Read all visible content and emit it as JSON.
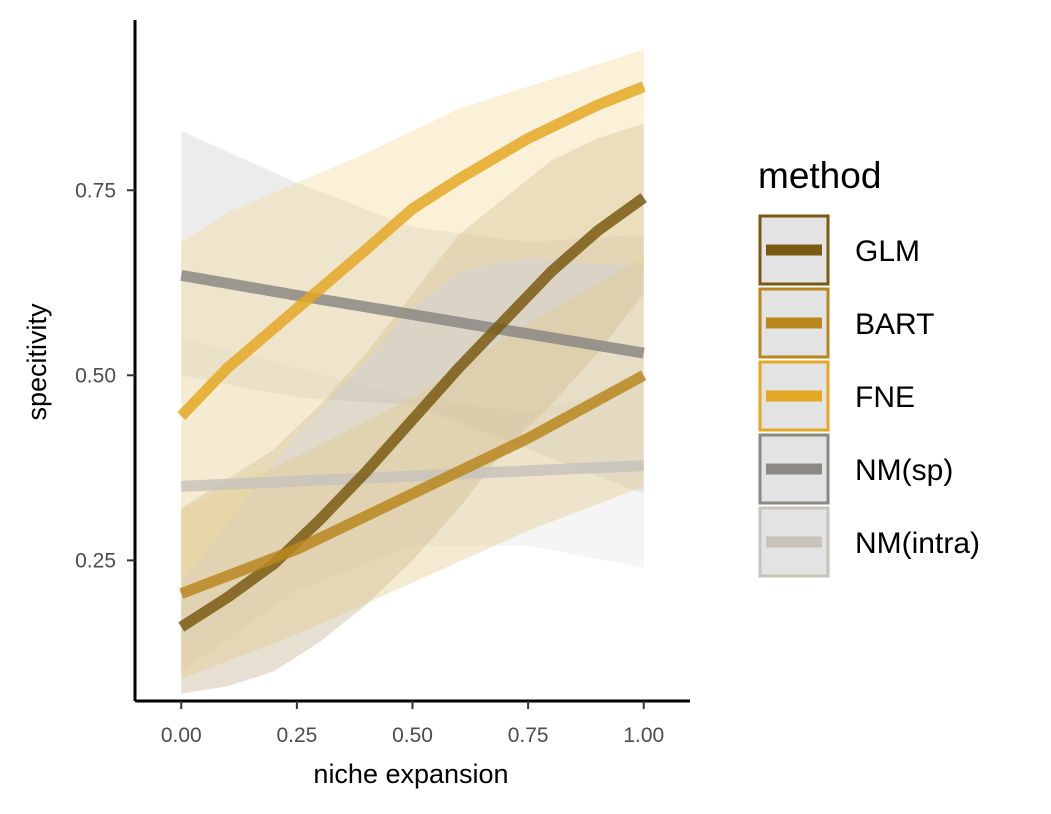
{
  "chart_data": {
    "type": "line",
    "xlabel": "niche expansion",
    "ylabel": "specitivity",
    "xlim": [
      -0.1,
      1.1
    ],
    "ylim": [
      0.06,
      0.98
    ],
    "x_ticks": [
      0,
      0.25,
      0.5,
      0.75,
      1
    ],
    "x_tick_labels": [
      "0.00",
      "0.25",
      "0.50",
      "0.75",
      "1.00"
    ],
    "y_ticks": [
      0.25,
      0.5,
      0.75
    ],
    "y_tick_labels": [
      "0.25",
      "0.50",
      "0.75"
    ],
    "grid": false,
    "legend": {
      "title": "method",
      "position": "right"
    },
    "series": [
      {
        "name": "NM(intra)",
        "color": "#c8c3bb",
        "band_color": "#e6e6e6",
        "x": [
          0,
          0.25,
          0.5,
          0.75,
          1
        ],
        "y": [
          0.35,
          0.357,
          0.364,
          0.371,
          0.378
        ],
        "lower": [
          0.1,
          0.21,
          0.27,
          0.27,
          0.24
        ],
        "upper": [
          0.55,
          0.51,
          0.47,
          0.45,
          0.49
        ]
      },
      {
        "name": "NM(sp)",
        "color": "#8c8883",
        "band_color": "#cccccc",
        "x": [
          0,
          0.25,
          0.5,
          0.75,
          1
        ],
        "y": [
          0.635,
          0.608,
          0.582,
          0.556,
          0.53
        ],
        "lower": [
          0.5,
          0.47,
          0.46,
          0.4,
          0.34
        ],
        "upper": [
          0.83,
          0.76,
          0.7,
          0.68,
          0.69
        ]
      },
      {
        "name": "GLM",
        "color": "#7a5a12",
        "band_color": "#bfae8a",
        "x": [
          0,
          0.1,
          0.2,
          0.3,
          0.4,
          0.5,
          0.6,
          0.7,
          0.8,
          0.9,
          1
        ],
        "y": [
          0.16,
          0.2,
          0.245,
          0.305,
          0.37,
          0.44,
          0.51,
          0.575,
          0.64,
          0.695,
          0.74
        ],
        "lower": [
          0.07,
          0.08,
          0.1,
          0.14,
          0.19,
          0.25,
          0.32,
          0.4,
          0.46,
          0.53,
          0.61
        ],
        "upper": [
          0.32,
          0.36,
          0.4,
          0.46,
          0.53,
          0.61,
          0.69,
          0.74,
          0.79,
          0.82,
          0.84
        ]
      },
      {
        "name": "BART",
        "color": "#b8871e",
        "band_color": "#e3c98a",
        "x": [
          0,
          0.25,
          0.5,
          0.75,
          1
        ],
        "y": [
          0.205,
          0.265,
          0.34,
          0.415,
          0.5
        ],
        "lower": [
          0.09,
          0.15,
          0.22,
          0.29,
          0.35
        ],
        "upper": [
          0.32,
          0.39,
          0.47,
          0.57,
          0.66
        ]
      },
      {
        "name": "FNE",
        "color": "#e4a824",
        "band_color": "#f2d999",
        "x": [
          0,
          0.1,
          0.25,
          0.4,
          0.5,
          0.6,
          0.75,
          0.9,
          1
        ],
        "y": [
          0.445,
          0.51,
          0.59,
          0.67,
          0.725,
          0.765,
          0.82,
          0.865,
          0.89
        ],
        "lower": [
          0.22,
          0.3,
          0.42,
          0.52,
          0.59,
          0.64,
          0.66,
          0.65,
          0.65
        ],
        "upper": [
          0.68,
          0.72,
          0.76,
          0.8,
          0.83,
          0.86,
          0.89,
          0.92,
          0.94
        ]
      }
    ]
  }
}
